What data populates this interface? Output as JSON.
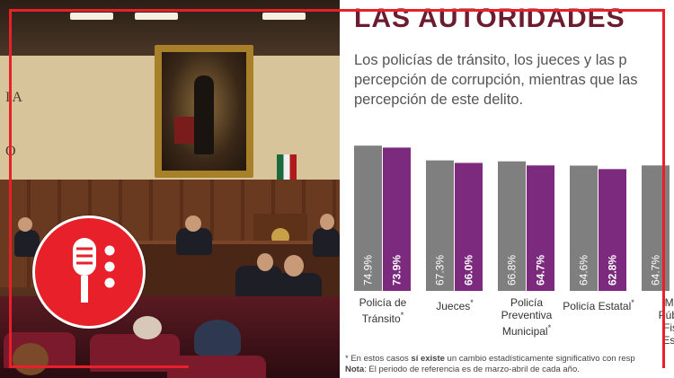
{
  "slide": {
    "title": "LAS AUTORIDADES",
    "intro_lines": [
      "Los policías de tránsito, los jueces y las p",
      "percepción de corrupción, mientras que las",
      "percepción de este delito."
    ]
  },
  "chart_data": {
    "type": "bar",
    "categories": [
      "Policía de Tránsito",
      "Jueces",
      "Policía Preventiva Municipal",
      "Policía Estatal",
      "Mi Públi Fis Est"
    ],
    "series": [
      {
        "values": [
          74.9,
          67.3,
          66.8,
          64.6,
          64.7
        ],
        "labels": [
          "74.9%",
          "67.3%",
          "66.8%",
          "64.6%",
          "64.7%"
        ]
      },
      {
        "values": [
          73.9,
          66.0,
          64.7,
          62.8,
          null
        ],
        "labels": [
          "73.9%",
          "66.0%",
          "64.7%",
          "62.8%",
          ""
        ]
      }
    ],
    "category_labels": [
      {
        "lines": [
          "Policía de",
          "Tránsito"
        ],
        "asterisk": "*"
      },
      {
        "lines": [
          "Jueces"
        ],
        "asterisk": "*"
      },
      {
        "lines": [
          "Policía",
          "Preventiva",
          "Municipal"
        ],
        "asterisk": "*"
      },
      {
        "lines": [
          "Policía Estatal"
        ],
        "asterisk": "*"
      },
      {
        "lines": [
          "Mi",
          "Públi",
          "Fis",
          "Est"
        ],
        "asterisk": ""
      }
    ],
    "colors": {
      "series_1": "#7f7f7f",
      "series_2": "#7b2a7e"
    }
  },
  "footnote": {
    "line1_prefix": "* En estos casos ",
    "line1_bold": "sí existe",
    "line1_suffix": " un cambio estadísticamente significativo con resp",
    "line2_bold": "Nota",
    "line2_text": ": El periodo de referencia es de marzo-abril de cada año."
  },
  "photo": {
    "wall_text_1": "IA",
    "wall_text_2": "O"
  },
  "icons": {
    "badge": "microphone-icon"
  },
  "colors": {
    "accent": "#e8202a",
    "title": "#6b1c2e"
  }
}
